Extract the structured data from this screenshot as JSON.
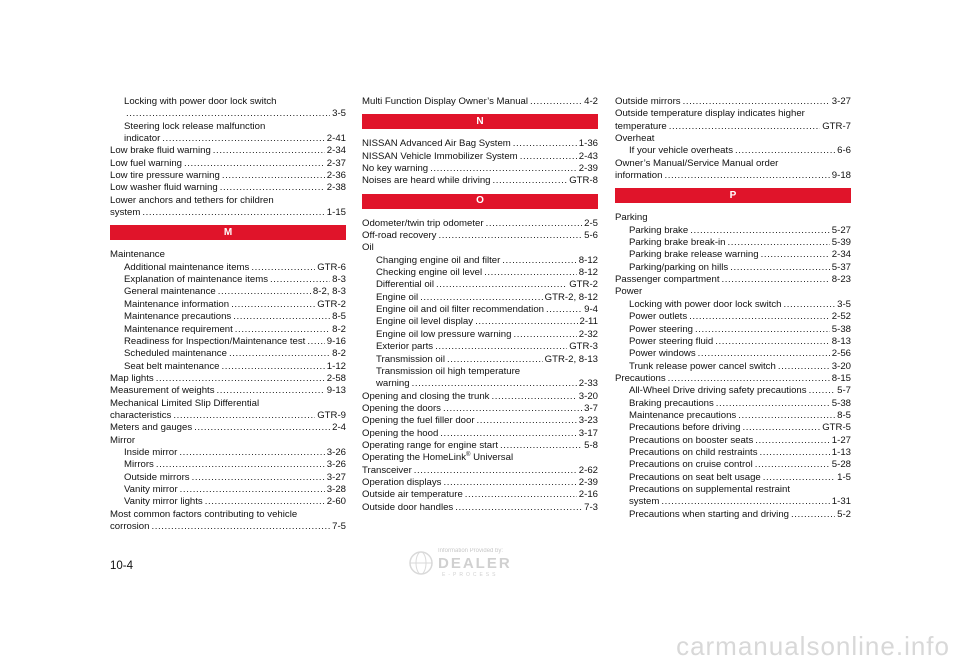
{
  "columns": [
    [
      {
        "kind": "line",
        "indent": true,
        "text": "Locking with power door lock switch"
      },
      {
        "kind": "entry",
        "indent": true,
        "text": "",
        "page": "3-5",
        "dotted_prefix": true
      },
      {
        "kind": "line",
        "indent": true,
        "text": "Steering lock release malfunction"
      },
      {
        "kind": "entry",
        "indent": true,
        "text": "indicator",
        "page": "2-41"
      },
      {
        "kind": "entry",
        "text": "Low brake fluid warning",
        "page": "2-34"
      },
      {
        "kind": "entry",
        "text": "Low fuel warning",
        "page": "2-37"
      },
      {
        "kind": "entry",
        "text": "Low tire pressure warning",
        "page": "2-36"
      },
      {
        "kind": "entry",
        "text": "Low washer fluid warning",
        "page": "2-38"
      },
      {
        "kind": "line",
        "text": "Lower anchors and tethers for children"
      },
      {
        "kind": "entry",
        "text": "system",
        "page": "1-15"
      },
      {
        "kind": "bar",
        "text": "M"
      },
      {
        "kind": "line",
        "text": "Maintenance"
      },
      {
        "kind": "entry",
        "indent": true,
        "text": "Additional maintenance items",
        "page": "GTR-6"
      },
      {
        "kind": "entry",
        "indent": true,
        "text": "Explanation of maintenance items",
        "page": "8-3"
      },
      {
        "kind": "entry",
        "indent": true,
        "text": "General maintenance",
        "page": "8-2, 8-3"
      },
      {
        "kind": "entry",
        "indent": true,
        "text": "Maintenance information",
        "page": "GTR-2"
      },
      {
        "kind": "entry",
        "indent": true,
        "text": "Maintenance precautions",
        "page": "8-5"
      },
      {
        "kind": "entry",
        "indent": true,
        "text": "Maintenance requirement",
        "page": "8-2"
      },
      {
        "kind": "entry",
        "indent": true,
        "text": "Readiness for Inspection/Maintenance test",
        "page": "9-16"
      },
      {
        "kind": "entry",
        "indent": true,
        "text": "Scheduled maintenance",
        "page": "8-2"
      },
      {
        "kind": "entry",
        "indent": true,
        "text": "Seat belt maintenance",
        "page": "1-12"
      },
      {
        "kind": "entry",
        "text": "Map lights",
        "page": "2-58"
      },
      {
        "kind": "entry",
        "text": "Measurement of weights",
        "page": "9-13"
      },
      {
        "kind": "line",
        "text": "Mechanical Limited Slip Differential"
      },
      {
        "kind": "entry",
        "text": "characteristics",
        "page": "GTR-9"
      },
      {
        "kind": "entry",
        "text": "Meters and gauges",
        "page": "2-4"
      },
      {
        "kind": "line",
        "text": "Mirror"
      },
      {
        "kind": "entry",
        "indent": true,
        "text": "Inside mirror",
        "page": "3-26"
      },
      {
        "kind": "entry",
        "indent": true,
        "text": "Mirrors",
        "page": "3-26"
      },
      {
        "kind": "entry",
        "indent": true,
        "text": "Outside mirrors",
        "page": "3-27"
      },
      {
        "kind": "entry",
        "indent": true,
        "text": "Vanity mirror",
        "page": "3-28"
      },
      {
        "kind": "entry",
        "indent": true,
        "text": "Vanity mirror lights",
        "page": "2-60"
      },
      {
        "kind": "line",
        "text": "Most common factors contributing to vehicle"
      },
      {
        "kind": "entry",
        "text": "corrosion",
        "page": "7-5"
      }
    ],
    [
      {
        "kind": "entry",
        "text": "Multi Function Display Owner’s Manual",
        "page": "4-2"
      },
      {
        "kind": "bar",
        "text": "N"
      },
      {
        "kind": "entry",
        "text": "NISSAN Advanced Air Bag System",
        "page": "1-36"
      },
      {
        "kind": "entry",
        "text": "NISSAN Vehicle Immobilizer System",
        "page": "2-43"
      },
      {
        "kind": "entry",
        "text": "No key warning",
        "page": "2-39"
      },
      {
        "kind": "entry",
        "text": "Noises are heard while driving",
        "page": "GTR-8"
      },
      {
        "kind": "bar",
        "text": "O"
      },
      {
        "kind": "entry",
        "text": "Odometer/twin trip odometer",
        "page": "2-5"
      },
      {
        "kind": "entry",
        "text": "Off-road recovery",
        "page": "5-6"
      },
      {
        "kind": "line",
        "text": "Oil"
      },
      {
        "kind": "entry",
        "indent": true,
        "text": "Changing engine oil and filter",
        "page": "8-12"
      },
      {
        "kind": "entry",
        "indent": true,
        "text": "Checking engine oil level",
        "page": "8-12"
      },
      {
        "kind": "entry",
        "indent": true,
        "text": "Differential oil",
        "page": "GTR-2"
      },
      {
        "kind": "entry",
        "indent": true,
        "text": "Engine oil",
        "page": "GTR-2, 8-12"
      },
      {
        "kind": "entry",
        "indent": true,
        "text": "Engine oil and oil filter recommendation",
        "page": "9-4"
      },
      {
        "kind": "entry",
        "indent": true,
        "text": "Engine oil level display",
        "page": "2-11"
      },
      {
        "kind": "entry",
        "indent": true,
        "text": "Engine oil low pressure warning",
        "page": "2-32"
      },
      {
        "kind": "entry",
        "indent": true,
        "text": "Exterior parts",
        "page": "GTR-3"
      },
      {
        "kind": "entry",
        "indent": true,
        "text": "Transmission oil",
        "page": "GTR-2, 8-13"
      },
      {
        "kind": "line",
        "indent": true,
        "text": "Transmission oil high temperature"
      },
      {
        "kind": "entry",
        "indent": true,
        "text": "warning",
        "page": "2-33"
      },
      {
        "kind": "entry",
        "text": "Opening and closing the trunk",
        "page": "3-20"
      },
      {
        "kind": "entry",
        "text": "Opening the doors",
        "page": "3-7"
      },
      {
        "kind": "entry",
        "text": "Opening the fuel filler door",
        "page": "3-23"
      },
      {
        "kind": "entry",
        "text": "Opening the hood",
        "page": "3-17"
      },
      {
        "kind": "entry",
        "text": "Operating range for engine start",
        "page": "5-8"
      },
      {
        "kind": "line",
        "text": "Operating the HomeLink",
        "sup": "®",
        "text_after": " Universal"
      },
      {
        "kind": "entry",
        "text": "Transceiver",
        "page": "2-62"
      },
      {
        "kind": "entry",
        "text": "Operation displays",
        "page": "2-39"
      },
      {
        "kind": "entry",
        "text": "Outside air temperature",
        "page": "2-16"
      },
      {
        "kind": "entry",
        "text": "Outside door handles",
        "page": "7-3"
      }
    ],
    [
      {
        "kind": "entry",
        "text": "Outside mirrors",
        "page": "3-27"
      },
      {
        "kind": "line",
        "text": "Outside temperature display indicates higher"
      },
      {
        "kind": "entry",
        "text": "temperature",
        "page": "GTR-7"
      },
      {
        "kind": "line",
        "text": "Overheat"
      },
      {
        "kind": "entry",
        "indent": true,
        "text": "If your vehicle overheats",
        "page": "6-6"
      },
      {
        "kind": "line",
        "text": "Owner’s Manual/Service Manual order"
      },
      {
        "kind": "entry",
        "text": "information",
        "page": "9-18"
      },
      {
        "kind": "bar",
        "text": "P"
      },
      {
        "kind": "line",
        "text": "Parking"
      },
      {
        "kind": "entry",
        "indent": true,
        "text": "Parking brake",
        "page": "5-27"
      },
      {
        "kind": "entry",
        "indent": true,
        "text": "Parking brake break-in",
        "page": "5-39"
      },
      {
        "kind": "entry",
        "indent": true,
        "text": "Parking brake release warning",
        "page": "2-34"
      },
      {
        "kind": "entry",
        "indent": true,
        "text": "Parking/parking on hills",
        "page": "5-37"
      },
      {
        "kind": "entry",
        "text": "Passenger compartment",
        "page": "8-23"
      },
      {
        "kind": "line",
        "text": "Power"
      },
      {
        "kind": "entry",
        "indent": true,
        "text": "Locking with power door lock switch",
        "page": "3-5"
      },
      {
        "kind": "entry",
        "indent": true,
        "text": "Power outlets",
        "page": "2-52"
      },
      {
        "kind": "entry",
        "indent": true,
        "text": "Power steering",
        "page": "5-38"
      },
      {
        "kind": "entry",
        "indent": true,
        "text": "Power steering fluid",
        "page": "8-13"
      },
      {
        "kind": "entry",
        "indent": true,
        "text": "Power windows",
        "page": "2-56"
      },
      {
        "kind": "entry",
        "indent": true,
        "text": "Trunk release power cancel switch",
        "page": "3-20"
      },
      {
        "kind": "entry",
        "text": "Precautions",
        "page": "8-15"
      },
      {
        "kind": "entry",
        "indent": true,
        "text": "All-Wheel Drive driving safety precautions",
        "page": "5-7"
      },
      {
        "kind": "entry",
        "indent": true,
        "text": "Braking precautions",
        "page": "5-38"
      },
      {
        "kind": "entry",
        "indent": true,
        "text": "Maintenance precautions",
        "page": "8-5"
      },
      {
        "kind": "entry",
        "indent": true,
        "text": "Precautions before driving",
        "page": "GTR-5"
      },
      {
        "kind": "entry",
        "indent": true,
        "text": "Precautions on booster seats",
        "page": "1-27"
      },
      {
        "kind": "entry",
        "indent": true,
        "text": "Precautions on child restraints",
        "page": "1-13"
      },
      {
        "kind": "entry",
        "indent": true,
        "text": "Precautions on cruise control",
        "page": "5-28"
      },
      {
        "kind": "entry",
        "indent": true,
        "text": "Precautions on seat belt usage",
        "page": "1-5"
      },
      {
        "kind": "line",
        "indent": true,
        "text": "Precautions on supplemental restraint"
      },
      {
        "kind": "entry",
        "indent": true,
        "text": "system",
        "page": "1-31"
      },
      {
        "kind": "entry",
        "indent": true,
        "text": "Precautions when starting and driving",
        "page": "5-2"
      }
    ]
  ],
  "page_number": "10-4",
  "dealer_logo": {
    "line1": "Information Provided by:",
    "brand": "DEALER",
    "tagline": "E-PROCESS",
    "icon": "globe-icon"
  },
  "watermark": "carmanualsonline.info"
}
